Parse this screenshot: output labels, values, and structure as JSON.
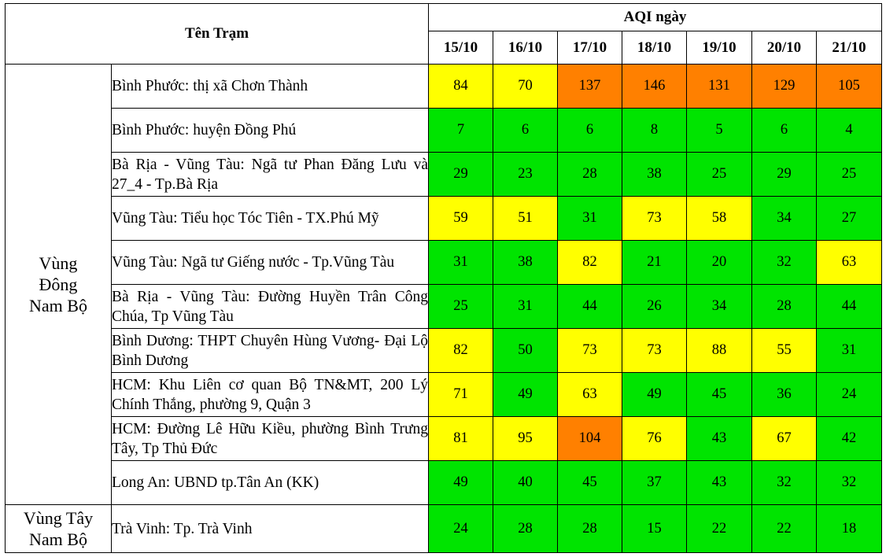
{
  "table": {
    "header": {
      "station_col": "Tên Trạm",
      "aqi_group": "AQI ngày",
      "dates": [
        "15/10",
        "16/10",
        "17/10",
        "18/10",
        "19/10",
        "20/10",
        "21/10"
      ]
    },
    "legend_colors": {
      "good": "#00E400",
      "moderate": "#FFFF00",
      "unhealthy_sensitive": "#FF8000"
    },
    "regions": [
      {
        "name": "Vùng Đông Nam Bộ",
        "name_lines": [
          "Vùng",
          "Đông",
          "Nam Bộ"
        ],
        "stations": [
          {
            "name": "Bình Phước: thị xã Chơn Thành",
            "values": [
              84,
              70,
              137,
              146,
              131,
              129,
              105
            ]
          },
          {
            "name": "Bình Phước: huyện Đồng Phú",
            "values": [
              7,
              6,
              6,
              8,
              5,
              6,
              4
            ]
          },
          {
            "name": "Bà Rịa - Vũng Tàu: Ngã tư Phan Đăng Lưu và 27_4 - Tp.Bà Rịa",
            "values": [
              29,
              23,
              28,
              38,
              25,
              29,
              25
            ]
          },
          {
            "name": "Vũng Tàu: Tiểu học Tóc Tiên - TX.Phú Mỹ",
            "values": [
              59,
              51,
              31,
              73,
              58,
              34,
              27
            ]
          },
          {
            "name": "Vũng Tàu: Ngã tư Giếng nước - Tp.Vũng Tàu",
            "values": [
              31,
              38,
              82,
              21,
              20,
              32,
              63
            ]
          },
          {
            "name": "Bà Rịa - Vũng Tàu: Đường Huyền Trân Công Chúa, Tp Vũng Tàu",
            "values": [
              25,
              31,
              44,
              26,
              34,
              28,
              44
            ]
          },
          {
            "name": "Bình Dương: THPT Chuyên Hùng Vương- Đại Lộ Bình Dương",
            "values": [
              82,
              50,
              73,
              73,
              88,
              55,
              31
            ]
          },
          {
            "name": "HCM: Khu Liên cơ quan Bộ TN&MT, 200 Lý Chính Thắng, phường 9, Quận 3",
            "values": [
              71,
              49,
              63,
              49,
              45,
              36,
              24
            ]
          },
          {
            "name": "HCM: Đường Lê Hữu Kiều, phường Bình Trưng Tây, Tp Thủ Đức",
            "values": [
              81,
              95,
              104,
              76,
              43,
              67,
              42
            ]
          },
          {
            "name": "Long An: UBND tp.Tân An (KK)",
            "values": [
              49,
              40,
              45,
              37,
              43,
              32,
              32
            ]
          }
        ]
      },
      {
        "name": "Vùng Tây Nam Bộ",
        "name_lines": [
          "Vùng Tây",
          "Nam Bộ"
        ],
        "stations": [
          {
            "name": "Trà Vinh: Tp. Trà Vinh",
            "values": [
              24,
              28,
              28,
              15,
              22,
              22,
              18
            ]
          }
        ]
      }
    ]
  }
}
